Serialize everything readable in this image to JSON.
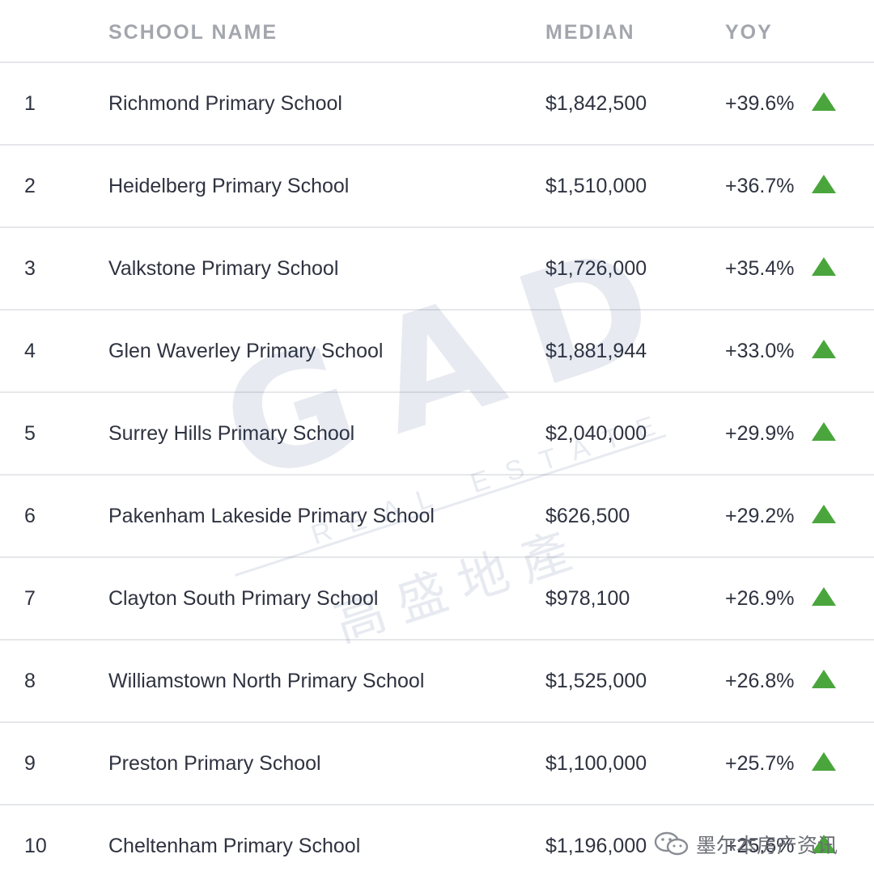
{
  "header": {
    "name": "SCHOOL NAME",
    "median": "MEDIAN",
    "yoy": "YOY"
  },
  "rows": [
    {
      "rank": "1",
      "name": "Richmond Primary School",
      "median": "$1,842,500",
      "yoy": "+39.6%",
      "trend_icon": "triangle-up-icon"
    },
    {
      "rank": "2",
      "name": "Heidelberg Primary School",
      "median": "$1,510,000",
      "yoy": "+36.7%",
      "trend_icon": "triangle-up-icon"
    },
    {
      "rank": "3",
      "name": "Valkstone Primary School",
      "median": "$1,726,000",
      "yoy": "+35.4%",
      "trend_icon": "triangle-up-icon"
    },
    {
      "rank": "4",
      "name": "Glen Waverley Primary School",
      "median": "$1,881,944",
      "yoy": "+33.0%",
      "trend_icon": "triangle-up-icon"
    },
    {
      "rank": "5",
      "name": "Surrey Hills Primary School",
      "median": "$2,040,000",
      "yoy": "+29.9%",
      "trend_icon": "triangle-up-icon"
    },
    {
      "rank": "6",
      "name": "Pakenham Lakeside Primary School",
      "median": "$626,500",
      "yoy": "+29.2%",
      "trend_icon": "triangle-up-icon"
    },
    {
      "rank": "7",
      "name": "Clayton South Primary School",
      "median": "$978,100",
      "yoy": "+26.9%",
      "trend_icon": "triangle-up-icon"
    },
    {
      "rank": "8",
      "name": "Williamstown North Primary School",
      "median": "$1,525,000",
      "yoy": "+26.8%",
      "trend_icon": "triangle-up-icon"
    },
    {
      "rank": "9",
      "name": "Preston Primary School",
      "median": "$1,100,000",
      "yoy": "+25.7%",
      "trend_icon": "triangle-up-icon"
    },
    {
      "rank": "10",
      "name": "Cheltenham Primary School",
      "median": "$1,196,000",
      "yoy": "+25.6%",
      "trend_icon": "triangle-up-icon"
    }
  ],
  "colors": {
    "trend_up": "#4aa63c",
    "header_text": "#a3a6ad",
    "body_text": "#2f3340",
    "divider": "#e6e7ea"
  },
  "watermark": {
    "logo": "GAD",
    "subtitle": "REAL ESTATE",
    "chinese": "高盛地產"
  },
  "credit": {
    "icon": "wechat-icon",
    "text": "墨尔本房产资讯"
  }
}
